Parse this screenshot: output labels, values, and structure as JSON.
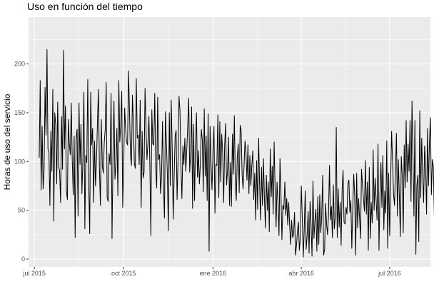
{
  "chart_data": {
    "type": "line",
    "title": "Uso en función del tiempo",
    "xlabel": "",
    "ylabel": "Horas de uso del servicio",
    "x_ticks": [
      {
        "date": "2015-07-01",
        "label": "jul 2015"
      },
      {
        "date": "2015-10-01",
        "label": "oct 2015"
      },
      {
        "date": "2016-01-01",
        "label": "ene 2016"
      },
      {
        "date": "2016-04-01",
        "label": "abr 2016"
      },
      {
        "date": "2016-07-01",
        "label": "jul 2016"
      }
    ],
    "y_ticks": [
      0,
      50,
      100,
      150,
      200
    ],
    "xlim": [
      "2015-06-25",
      "2016-08-12"
    ],
    "ylim": [
      -8,
      248
    ],
    "grid": true,
    "legend": "none",
    "colors": {
      "panel": "#ebebeb",
      "grid": "#ffffff",
      "line": "#000000",
      "tick_text": "#4d4d4d"
    },
    "series": [
      {
        "start_date": "2015-07-06",
        "values": [
          104,
          183,
          71,
          136,
          72,
          92,
          176,
          127,
          215,
          113,
          110,
          55,
          131,
          90,
          174,
          39,
          150,
          138,
          77,
          161,
          96,
          90,
          58,
          146,
          92,
          214,
          113,
          157,
          70,
          61,
          143,
          118,
          107,
          160,
          102,
          66,
          126,
          22,
          124,
          133,
          44,
          160,
          97,
          138,
          67,
          103,
          171,
          31,
          106,
          99,
          184,
          77,
          26,
          171,
          117,
          134,
          58,
          121,
          75,
          101,
          141,
          174,
          94,
          55,
          143,
          96,
          88,
          120,
          133,
          181,
          63,
          59,
          108,
          97,
          170,
          21,
          107,
          162,
          82,
          96,
          134,
          65,
          183,
          120,
          138,
          172,
          53,
          96,
          155,
          133,
          120,
          117,
          193,
          152,
          107,
          96,
          168,
          139,
          98,
          93,
          185,
          124,
          127,
          97,
          163,
          53,
          131,
          83,
          89,
          175,
          134,
          102,
          119,
          146,
          94,
          24,
          153,
          118,
          117,
          170,
          94,
          73,
          166,
          102,
          107,
          67,
          84,
          141,
          77,
          42,
          151,
          120,
          87,
          29,
          150,
          75,
          163,
          112,
          41,
          85,
          126,
          132,
          61,
          101,
          167,
          152,
          94,
          62,
          116,
          97,
          124,
          90,
          112,
          137,
          165,
          89,
          108,
          156,
          52,
          138,
          60,
          117,
          150,
          84,
          111,
          77,
          98,
          133,
          122,
          69,
          154,
          85,
          126,
          60,
          149,
          8,
          136,
          98,
          71,
          111,
          136,
          47,
          97,
          96,
          148,
          63,
          141,
          79,
          128,
          109,
          58,
          116,
          139,
          76,
          91,
          125,
          55,
          99,
          54,
          128,
          87,
          147,
          78,
          60,
          104,
          118,
          68,
          137,
          132,
          86,
          72,
          96,
          121,
          108,
          81,
          117,
          67,
          106,
          75,
          96,
          111,
          61,
          88,
          40,
          101,
          51,
          124,
          77,
          40,
          94,
          55,
          103,
          62,
          32,
          86,
          50,
          79,
          28,
          113,
          64,
          95,
          46,
          120,
          71,
          33,
          79,
          57,
          24,
          103,
          68,
          20,
          55,
          51,
          79,
          45,
          62,
          35,
          58,
          34,
          15,
          40,
          22,
          25,
          48,
          4,
          14,
          28,
          38,
          9,
          21,
          75,
          42,
          2,
          30,
          70,
          10,
          24,
          49,
          6,
          59,
          36,
          3,
          80,
          21,
          39,
          51,
          8,
          64,
          15,
          66,
          27,
          44,
          86,
          4,
          10,
          57,
          36,
          25,
          46,
          96,
          40,
          54,
          22,
          76,
          31,
          43,
          135,
          22,
          72,
          33,
          58,
          14,
          70,
          91,
          38,
          36,
          53,
          46,
          77,
          81,
          48,
          60,
          11,
          52,
          87,
          65,
          4,
          88,
          32,
          62,
          42,
          21,
          92,
          76,
          62,
          49,
          101,
          46,
          79,
          9,
          94,
          21,
          58,
          37,
          112,
          50,
          83,
          62,
          40,
          118,
          9,
          67,
          99,
          53,
          106,
          30,
          70,
          47,
          121,
          11,
          88,
          24,
          78,
          131,
          100,
          67,
          55,
          94,
          129,
          44,
          102,
          63,
          23,
          105,
          85,
          27,
          117,
          73,
          142,
          79,
          118,
          90,
          142,
          59,
          162,
          107,
          44,
          142,
          5,
          75,
          86,
          18,
          152,
          63,
          124,
          87,
          58,
          116,
          97,
          46,
          134,
          75,
          120,
          145,
          66,
          102,
          95,
          43,
          143,
          88,
          160,
          72,
          127,
          36,
          152,
          115,
          59,
          159,
          89,
          134,
          4,
          80,
          111,
          167,
          96,
          139,
          60,
          132,
          70,
          146,
          112,
          215,
          54,
          158,
          122,
          88,
          139,
          39,
          177,
          118,
          68,
          91,
          151,
          31,
          124,
          99,
          164,
          7,
          105,
          136,
          96,
          118,
          162,
          48,
          148,
          111,
          140,
          97,
          48,
          134,
          125,
          175,
          87,
          165,
          61,
          107,
          99,
          128,
          181,
          76,
          152,
          119,
          160,
          72,
          141,
          99,
          127,
          21,
          164,
          100,
          186,
          132,
          106,
          209,
          65,
          172,
          141,
          110,
          213,
          66,
          134,
          95,
          101,
          82,
          198,
          111,
          157,
          46,
          144,
          176,
          91,
          194,
          59,
          135,
          150,
          170,
          97,
          101,
          58,
          219,
          56,
          164,
          111,
          96,
          175,
          67,
          145,
          108,
          43,
          158,
          78,
          144,
          134,
          39,
          108,
          236,
          134,
          92,
          49,
          141,
          122,
          71,
          164,
          103,
          146,
          56,
          177,
          116,
          146,
          81,
          157,
          148,
          157,
          99,
          111,
          165,
          66,
          157
        ]
      }
    ]
  }
}
